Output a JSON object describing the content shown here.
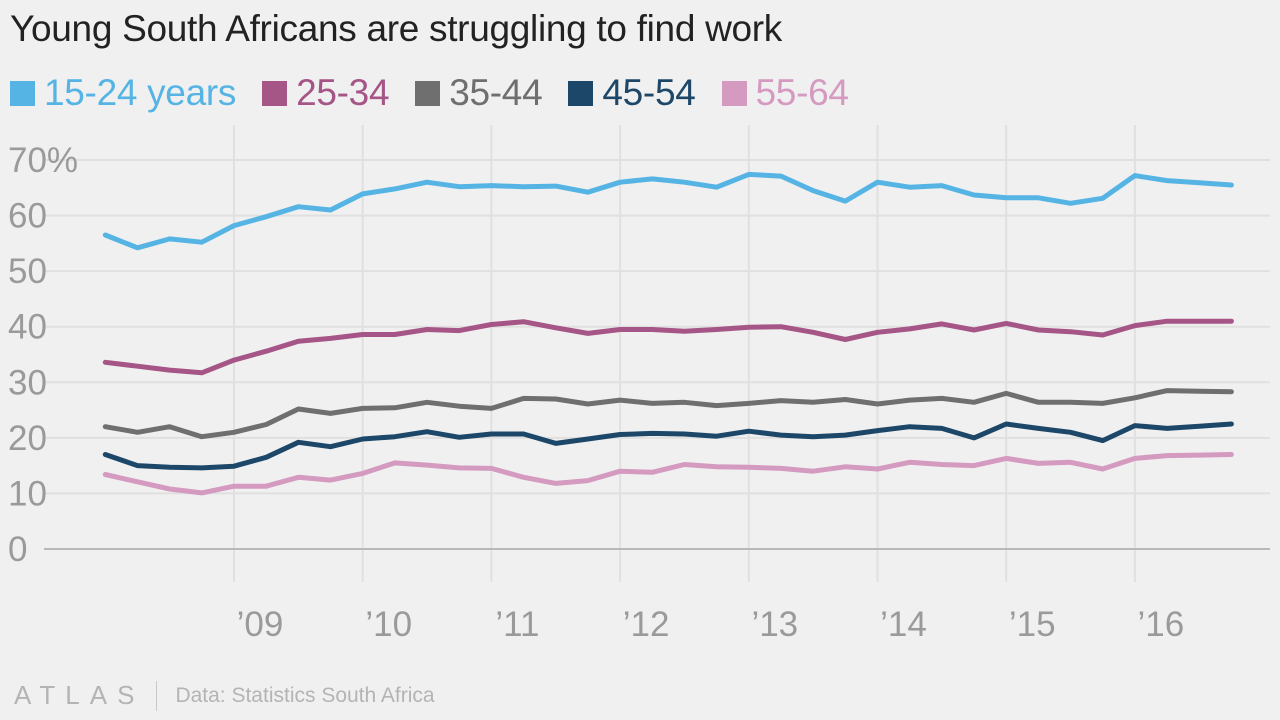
{
  "chart_data": {
    "type": "line",
    "title": "Young South Africans are struggling to find work",
    "x_tick_labels": [
      "’09",
      "’10",
      "’11",
      "’12",
      "’13",
      "’14",
      "’15",
      "’16"
    ],
    "x_tick_years": [
      2009,
      2010,
      2011,
      2012,
      2013,
      2014,
      2015,
      2016
    ],
    "x": [
      2008.0,
      2008.25,
      2008.5,
      2008.75,
      2009.0,
      2009.25,
      2009.5,
      2009.75,
      2010.0,
      2010.25,
      2010.5,
      2010.75,
      2011.0,
      2011.25,
      2011.5,
      2011.75,
      2012.0,
      2012.25,
      2012.5,
      2012.75,
      2013.0,
      2013.25,
      2013.5,
      2013.75,
      2014.0,
      2014.25,
      2014.5,
      2014.75,
      2015.0,
      2015.25,
      2015.5,
      2015.75,
      2016.0,
      2016.25,
      2016.5,
      2016.75
    ],
    "y_ticks": [
      0,
      10,
      20,
      30,
      40,
      50,
      60,
      70
    ],
    "y_tick_labels": [
      "0",
      "10",
      "20",
      "30",
      "40",
      "50",
      "60",
      "70%"
    ],
    "ylim": [
      0,
      70
    ],
    "grid": true,
    "legend_position": "top",
    "series": [
      {
        "name": "15-24 years",
        "color": "#55b4e4",
        "values": [
          56.5,
          54.2,
          55.8,
          55.2,
          58.2,
          59.8,
          61.6,
          61.0,
          63.9,
          64.8,
          66.0,
          65.2,
          65.4,
          65.2,
          65.3,
          64.2,
          66.0,
          66.6,
          66.0,
          65.1,
          67.4,
          67.1,
          64.5,
          62.6,
          66.0,
          65.1,
          65.4,
          63.7,
          63.2,
          63.2,
          62.2,
          63.1,
          67.2,
          66.3,
          65.9,
          65.5
        ]
      },
      {
        "name": "25-34",
        "color": "#a55586",
        "values": [
          33.6,
          32.9,
          32.2,
          31.7,
          34.0,
          35.6,
          37.4,
          37.9,
          38.6,
          38.6,
          39.5,
          39.3,
          40.4,
          40.9,
          39.8,
          38.8,
          39.5,
          39.5,
          39.2,
          39.5,
          39.9,
          40.0,
          39.0,
          37.7,
          39.0,
          39.6,
          40.5,
          39.4,
          40.6,
          39.4,
          39.1,
          38.5,
          40.2,
          41.0,
          41.0,
          41.0
        ]
      },
      {
        "name": "35-44",
        "color": "#6f6f6f",
        "values": [
          22.0,
          21.0,
          22.0,
          20.2,
          21.0,
          22.4,
          25.2,
          24.4,
          25.3,
          25.4,
          26.4,
          25.7,
          25.3,
          27.1,
          27.0,
          26.1,
          26.8,
          26.2,
          26.4,
          25.8,
          26.2,
          26.7,
          26.4,
          26.9,
          26.1,
          26.8,
          27.1,
          26.4,
          28.0,
          26.4,
          26.4,
          26.2,
          27.2,
          28.5,
          28.4,
          28.3
        ]
      },
      {
        "name": "45-54",
        "color": "#1d4769",
        "values": [
          17.0,
          15.0,
          14.7,
          14.6,
          14.9,
          16.5,
          19.2,
          18.4,
          19.8,
          20.2,
          21.1,
          20.1,
          20.7,
          20.7,
          19.0,
          19.8,
          20.6,
          20.8,
          20.7,
          20.3,
          21.2,
          20.5,
          20.2,
          20.5,
          21.3,
          22.0,
          21.7,
          20.0,
          22.5,
          21.7,
          21.0,
          19.5,
          22.2,
          21.7,
          22.1,
          22.5
        ]
      },
      {
        "name": "55-64",
        "color": "#d49ac0",
        "values": [
          13.4,
          12.1,
          10.8,
          10.1,
          11.3,
          11.3,
          12.9,
          12.4,
          13.6,
          15.5,
          15.1,
          14.6,
          14.5,
          12.9,
          11.8,
          12.3,
          14.0,
          13.8,
          15.2,
          14.8,
          14.7,
          14.5,
          14.0,
          14.8,
          14.4,
          15.6,
          15.2,
          15.0,
          16.3,
          15.4,
          15.6,
          14.4,
          16.3,
          16.8,
          16.9,
          17.0
        ]
      }
    ]
  },
  "footer": {
    "brand": "ATLAS",
    "source": "Data: Statistics South Africa"
  },
  "colors": {
    "background": "#f0f0f0",
    "gridline": "#e0e0e0",
    "axis_line": "#b8b8b8",
    "tick_text": "#9a9a9a",
    "title_text": "#222222"
  }
}
